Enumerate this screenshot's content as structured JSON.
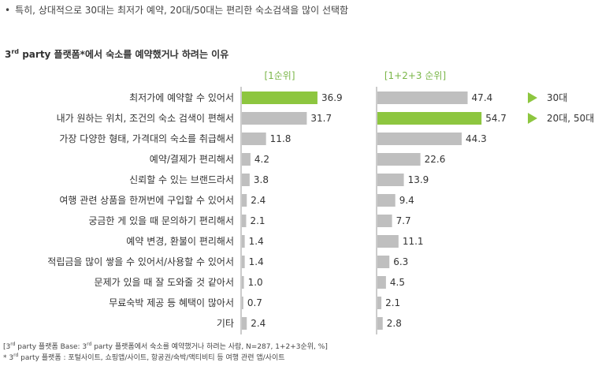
{
  "headline": {
    "bullet": "•",
    "text": "특히, 상대적으로 30대는 최저가 예약, 20대/50대는 편리한 숙소검색을 많이 선택함"
  },
  "chart_title": {
    "prefix": "3",
    "sup": "rd",
    "rest": " party 플랫폼*에서 숙소를 예약했거나 하려는 이유"
  },
  "footnotes": {
    "line1_a": "[3",
    "line1_sup1": "rd",
    "line1_b": " party 플랫폼 Base: 3",
    "line1_sup2": "rd",
    "line1_c": " party 플랫폼에서 숙소를 예약했거나 하려는 사람, N=287, 1+2+3순위, %]",
    "line2_a": "* 3",
    "line2_sup": "rd",
    "line2_b": " party 플랫폼 : 포털사이트, 쇼핑앱/사이트, 항공권/숙박/액티비티 등 여행 관련 앱/사이트"
  },
  "colors": {
    "highlight": "#8dc63f",
    "bar": "#bfbfbf",
    "axis": "#999999",
    "header_text": "#7ab648"
  },
  "chart_data": {
    "type": "bar",
    "orientation": "horizontal",
    "categories": [
      "최저가에 예약할 수 있어서",
      "내가 원하는 위치, 조건의 숙소 검색이 편해서",
      "가장 다양한 형태, 가격대의 숙소를 취급해서",
      "예약/결제가 편리해서",
      "신뢰할 수 있는 브랜드라서",
      "여행 관련 상품을 한꺼번에 구입할 수 있어서",
      "궁금한 게 있을 때 문의하기 편리해서",
      "예약 변경, 환불이 편리해서",
      "적립금을 많이 쌓을 수 있어서/사용할 수 있어서",
      "문제가 있을 때 잘 도와줄 것 같아서",
      "무료숙박 제공 등 혜택이 많아서",
      "기타"
    ],
    "series": [
      {
        "name": "[1순위]",
        "values": [
          36.9,
          31.7,
          11.8,
          4.2,
          3.8,
          2.4,
          2.1,
          1.4,
          1.4,
          1.0,
          0.7,
          2.4
        ],
        "labels": [
          "36.9",
          "31.7",
          "11.8",
          "4.2",
          "3.8",
          "2.4",
          "2.1",
          "1.4",
          "1.4",
          "1.0",
          "0.7",
          "2.4"
        ],
        "highlight_index": 0,
        "axis_max": 40
      },
      {
        "name": "[1+2+3 순위]",
        "values": [
          47.4,
          54.7,
          44.3,
          22.6,
          13.9,
          9.4,
          7.7,
          11.1,
          6.3,
          4.5,
          2.1,
          2.8
        ],
        "labels": [
          "47.4",
          "54.7",
          "44.3",
          "22.6",
          "13.9",
          "9.4",
          "7.7",
          "11.1",
          "6.3",
          "4.5",
          "2.1",
          "2.8"
        ],
        "highlight_index": 1,
        "axis_max": 60
      }
    ],
    "annotations": [
      {
        "row": 0,
        "text": "30대"
      },
      {
        "row": 1,
        "text": "20대, 50대"
      }
    ]
  }
}
